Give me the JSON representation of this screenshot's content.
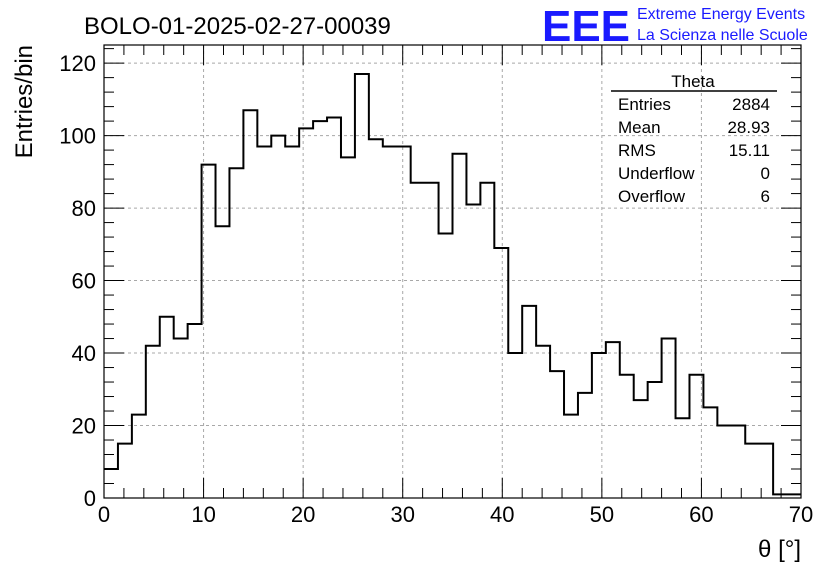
{
  "chart_data": {
    "type": "histogram",
    "title": "BOLO-01-2025-02-27-00039",
    "xlabel": "θ [°]",
    "ylabel": "Entries/bin",
    "xlim": [
      0,
      70
    ],
    "ylim": [
      0,
      125
    ],
    "bin_width": 1.4,
    "grid": true,
    "x_ticks": [
      0,
      10,
      20,
      30,
      40,
      50,
      60,
      70
    ],
    "y_ticks": [
      0,
      20,
      40,
      60,
      80,
      100,
      120
    ],
    "values": [
      8,
      15,
      23,
      42,
      50,
      44,
      48,
      92,
      75,
      91,
      107,
      97,
      100,
      97,
      102,
      104,
      105,
      94,
      117,
      99,
      97,
      97,
      87,
      87,
      73,
      95,
      81,
      87,
      69,
      40,
      53,
      42,
      35,
      23,
      29,
      40,
      43,
      34,
      27,
      32,
      44,
      22,
      34,
      25,
      20,
      20,
      15,
      15,
      1,
      1
    ],
    "stats_box": {
      "title": "Theta",
      "rows": [
        {
          "label": "Entries",
          "value": "2884"
        },
        {
          "label": "Mean",
          "value": "28.93"
        },
        {
          "label": "RMS",
          "value": "15.11"
        },
        {
          "label": "Underflow",
          "value": "0"
        },
        {
          "label": "Overflow",
          "value": "6"
        }
      ]
    }
  },
  "logo": {
    "text": "EEE",
    "line1": "Extreme Energy Events",
    "line2": "La Scienza nelle Scuole",
    "color": "#1a1aff"
  }
}
